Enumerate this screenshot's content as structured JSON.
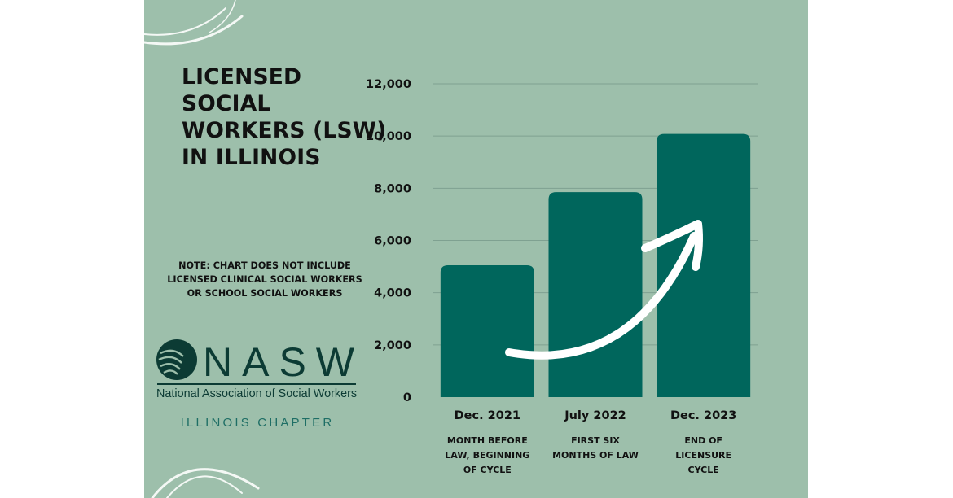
{
  "title": "LICENSED SOCIAL WORKERS (LSW) IN ILLINOIS",
  "note": "NOTE: CHART DOES NOT INCLUDE\nLICENSED CLINICAL SOCIAL WORKERS\nOR SCHOOL SOCIAL WORKERS",
  "logo": {
    "mark": "NASW",
    "org_name": "National Association of Social Workers",
    "chapter": "ILLINOIS CHAPTER"
  },
  "colors": {
    "background": "#9dbfab",
    "bar": "#00665c",
    "grid": "#7fa191",
    "arrow": "#ffffff"
  },
  "chart_data": {
    "type": "bar",
    "title": "LICENSED SOCIAL WORKERS (LSW) IN ILLINOIS",
    "xlabel": "",
    "ylabel": "",
    "ylim": [
      0,
      12000
    ],
    "yticks": [
      0,
      2000,
      4000,
      6000,
      8000,
      10000,
      12000
    ],
    "ytick_labels": [
      "0",
      "2,000",
      "4,000",
      "6,000",
      "8,000",
      "10,000",
      "12,000"
    ],
    "grid": true,
    "legend": "none",
    "categories": [
      "Dec. 2021",
      "July 2022",
      "Dec. 2023"
    ],
    "values": [
      5050,
      7850,
      10080
    ],
    "descriptions": [
      [
        "MONTH BEFORE",
        "LAW, BEGINNING",
        "OF CYCLE"
      ],
      [
        "FIRST SIX",
        "MONTHS OF LAW"
      ],
      [
        "END OF",
        "LICENSURE",
        "CYCLE"
      ]
    ],
    "annotation": "upward-trend-arrow"
  }
}
